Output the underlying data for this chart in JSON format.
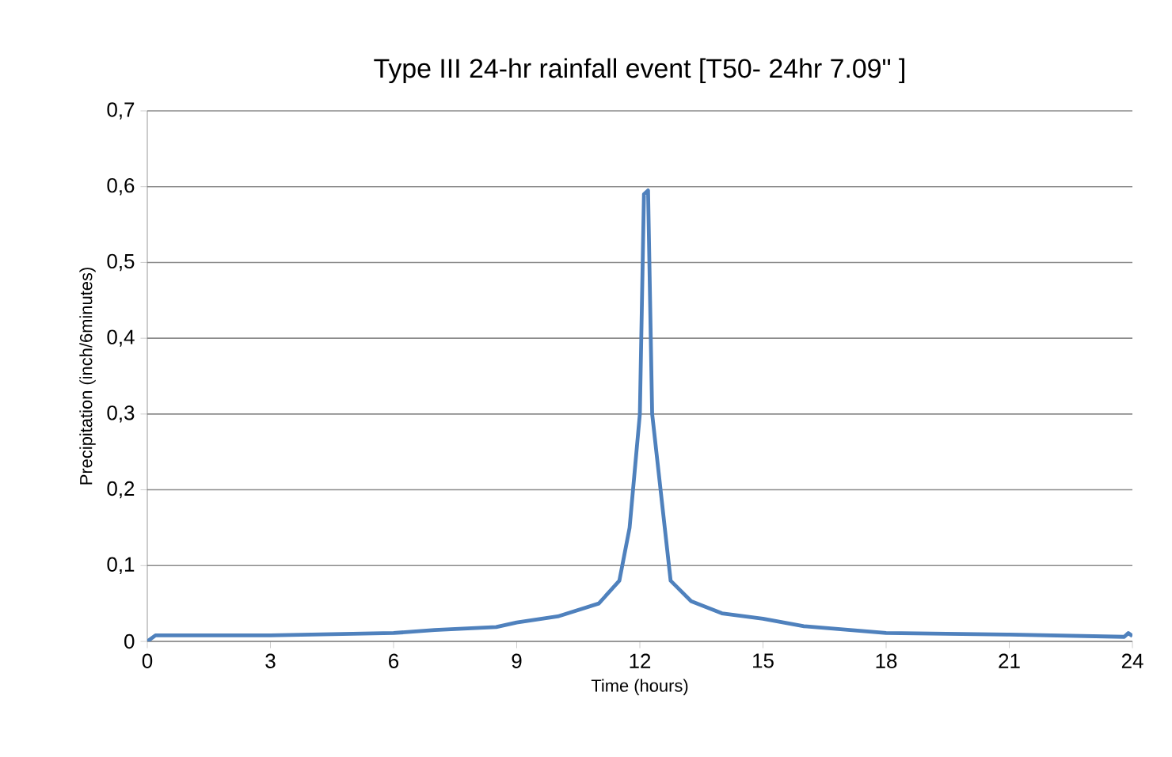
{
  "chart_data": {
    "type": "line",
    "title": "Type III 24-hr rainfall event [T50- 24hr 7.09\" ]",
    "xlabel": "Time (hours)",
    "ylabel": "Precipitation (inch/6minutes)",
    "series": [
      {
        "color": "#4f81bd",
        "x": [
          0,
          0.2,
          3,
          6,
          7,
          8.5,
          9,
          10,
          11,
          11.5,
          11.75,
          12,
          12.1,
          12.2,
          12.3,
          12.75,
          13.25,
          14,
          15,
          16,
          18,
          21,
          23.8,
          23.9,
          24
        ],
        "values": [
          0,
          0.008,
          0.008,
          0.011,
          0.015,
          0.019,
          0.025,
          0.033,
          0.05,
          0.08,
          0.15,
          0.3,
          0.59,
          0.595,
          0.3,
          0.08,
          0.053,
          0.037,
          0.03,
          0.02,
          0.011,
          0.009,
          0.006,
          0.011,
          0.007
        ]
      }
    ],
    "xlim": [
      0,
      24
    ],
    "xticks": [
      0,
      3,
      6,
      9,
      12,
      15,
      18,
      21,
      24
    ],
    "ylim": [
      0,
      0.7
    ],
    "yticks": [
      0,
      {
        "value": 0.1,
        "label": "0,1"
      },
      {
        "value": 0.2,
        "label": "0,2"
      },
      {
        "value": 0.3,
        "label": "0,3"
      },
      {
        "value": 0.4,
        "label": "0,4"
      },
      {
        "value": 0.5,
        "label": "0,5"
      },
      {
        "value": 0.6,
        "label": "0,6"
      },
      {
        "value": 0.7,
        "label": "0,7"
      }
    ],
    "grid": "y",
    "marker": "none",
    "line_style": "solid"
  }
}
